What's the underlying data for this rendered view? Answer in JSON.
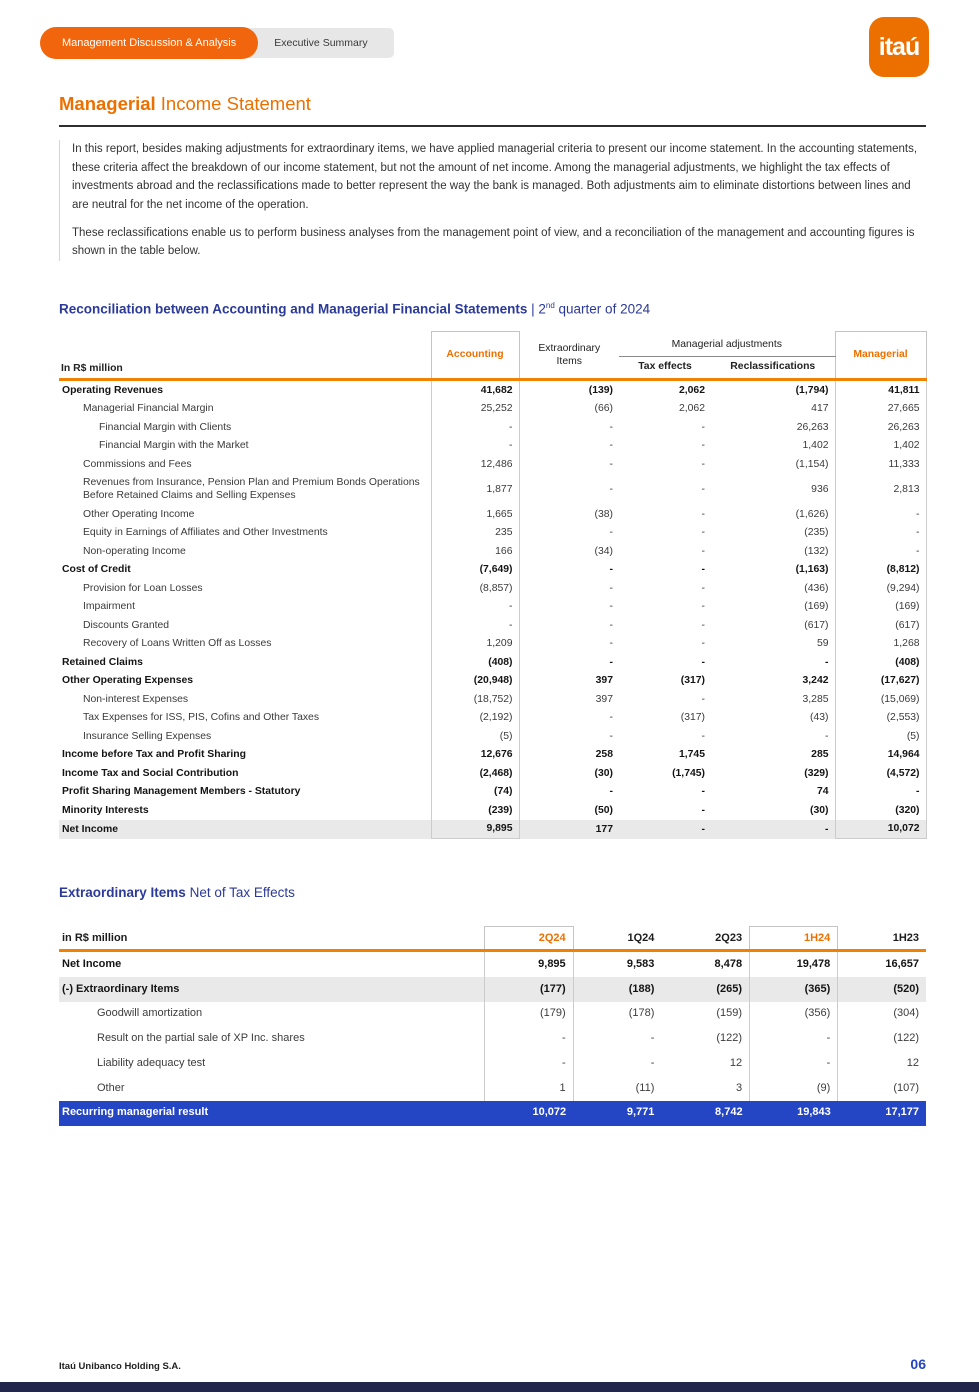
{
  "tabs": {
    "primary": "Management Discussion & Analysis",
    "secondary": "Executive Summary"
  },
  "logo_text": "itaú",
  "title": {
    "highlight": "Managerial",
    "rest": " Income Statement"
  },
  "intro": {
    "p1": "In this report, besides making adjustments for extraordinary items, we have applied managerial criteria to present our income statement. In the accounting statements, these criteria affect the breakdown of our income statement, but not the amount of net income. Among the managerial adjustments, we highlight the tax effects of investments abroad and the reclassifications made to better represent the way the bank is managed. Both adjustments aim to eliminate distortions between lines and are neutral for the net income of the operation.",
    "p2": "These reclassifications enable us to perform business analyses from the management point of view, and a reconciliation of the management and accounting figures is shown in the table below."
  },
  "section1": {
    "bold": "Reconciliation between Accounting and Managerial Financial Statements",
    "sep": " | 2",
    "sup": "nd",
    "rest": " quarter of 2024"
  },
  "recon_table": {
    "unit": "In R$ million",
    "headers": {
      "accounting": "Accounting",
      "extraordinary": "Extraordinary Items",
      "group": "Managerial adjustments",
      "tax": "Tax effects",
      "reclass": "Reclassifications",
      "managerial": "Managerial"
    },
    "rows": [
      {
        "label": "Operating Revenues",
        "indent": 0,
        "bold": true,
        "values": [
          "41,682",
          "(139)",
          "2,062",
          "(1,794)",
          "41,811"
        ]
      },
      {
        "label": "Managerial Financial Margin",
        "indent": 1,
        "values": [
          "25,252",
          "(66)",
          "2,062",
          "417",
          "27,665"
        ]
      },
      {
        "label": "Financial Margin with Clients",
        "indent": 2,
        "values": [
          "-",
          "-",
          "-",
          "26,263",
          "26,263"
        ]
      },
      {
        "label": "Financial Margin with the Market",
        "indent": 2,
        "values": [
          "-",
          "-",
          "-",
          "1,402",
          "1,402"
        ]
      },
      {
        "label": "Commissions and Fees",
        "indent": 1,
        "values": [
          "12,486",
          "-",
          "-",
          "(1,154)",
          "11,333"
        ]
      },
      {
        "label": "Revenues from Insurance, Pension Plan and Premium Bonds Operations Before Retained Claims and Selling Expenses",
        "indent": 1,
        "values": [
          "1,877",
          "-",
          "-",
          "936",
          "2,813"
        ]
      },
      {
        "label": "Other Operating Income",
        "indent": 1,
        "values": [
          "1,665",
          "(38)",
          "-",
          "(1,626)",
          "-"
        ]
      },
      {
        "label": "Equity in Earnings of Affiliates and Other Investments",
        "indent": 1,
        "values": [
          "235",
          "-",
          "-",
          "(235)",
          "-"
        ]
      },
      {
        "label": "Non-operating Income",
        "indent": 1,
        "values": [
          "166",
          "(34)",
          "-",
          "(132)",
          "-"
        ]
      },
      {
        "label": "Cost of Credit",
        "indent": 0,
        "bold": true,
        "values": [
          "(7,649)",
          "-",
          "-",
          "(1,163)",
          "(8,812)"
        ]
      },
      {
        "label": "Provision for Loan Losses",
        "indent": 1,
        "values": [
          "(8,857)",
          "-",
          "-",
          "(436)",
          "(9,294)"
        ]
      },
      {
        "label": "Impairment",
        "indent": 1,
        "values": [
          "-",
          "-",
          "-",
          "(169)",
          "(169)"
        ]
      },
      {
        "label": "Discounts Granted",
        "indent": 1,
        "values": [
          "-",
          "-",
          "-",
          "(617)",
          "(617)"
        ]
      },
      {
        "label": "Recovery of Loans Written Off as Losses",
        "indent": 1,
        "values": [
          "1,209",
          "-",
          "-",
          "59",
          "1,268"
        ]
      },
      {
        "label": "Retained Claims",
        "indent": 0,
        "bold": true,
        "values": [
          "(408)",
          "-",
          "-",
          "-",
          "(408)"
        ]
      },
      {
        "label": "Other Operating Expenses",
        "indent": 0,
        "bold": true,
        "values": [
          "(20,948)",
          "397",
          "(317)",
          "3,242",
          "(17,627)"
        ]
      },
      {
        "label": "Non-interest Expenses",
        "indent": 1,
        "values": [
          "(18,752)",
          "397",
          "-",
          "3,285",
          "(15,069)"
        ]
      },
      {
        "label": "Tax Expenses for ISS, PIS, Cofins and Other Taxes",
        "indent": 1,
        "values": [
          "(2,192)",
          "-",
          "(317)",
          "(43)",
          "(2,553)"
        ]
      },
      {
        "label": "Insurance Selling Expenses",
        "indent": 1,
        "values": [
          "(5)",
          "-",
          "-",
          "-",
          "(5)"
        ]
      },
      {
        "label": "Income before Tax and Profit Sharing",
        "indent": 0,
        "bold": true,
        "values": [
          "12,676",
          "258",
          "1,745",
          "285",
          "14,964"
        ]
      },
      {
        "label": "Income Tax and Social Contribution",
        "indent": 0,
        "bold": true,
        "values": [
          "(2,468)",
          "(30)",
          "(1,745)",
          "(329)",
          "(4,572)"
        ]
      },
      {
        "label": "Profit Sharing Management Members - Statutory",
        "indent": 0,
        "bold": true,
        "values": [
          "(74)",
          "-",
          "-",
          "74",
          "-"
        ]
      },
      {
        "label": "Minority Interests",
        "indent": 0,
        "bold": true,
        "values": [
          "(239)",
          "(50)",
          "-",
          "(30)",
          "(320)"
        ]
      },
      {
        "label": "Net Income",
        "indent": 0,
        "bold": true,
        "shaded": true,
        "values": [
          "9,895",
          "177",
          "-",
          "-",
          "10,072"
        ]
      }
    ]
  },
  "section2": {
    "bold": "Extraordinary Items",
    "rest": " Net of Tax Effects"
  },
  "extra_table": {
    "unit": "in R$ million",
    "columns": [
      "2Q24",
      "1Q24",
      "2Q23",
      "1H24",
      "1H23"
    ],
    "rows": [
      {
        "label": "Net Income",
        "indent": 0,
        "bold": true,
        "values": [
          "9,895",
          "9,583",
          "8,478",
          "19,478",
          "16,657"
        ]
      },
      {
        "label": "(-) Extraordinary Items",
        "indent": 0,
        "bold": true,
        "shaded": true,
        "values": [
          "(177)",
          "(188)",
          "(265)",
          "(365)",
          "(520)"
        ]
      },
      {
        "label": "Goodwill amortization",
        "indent": 1,
        "values": [
          "(179)",
          "(178)",
          "(159)",
          "(356)",
          "(304)"
        ]
      },
      {
        "label": "Result on the partial sale of XP Inc. shares",
        "indent": 1,
        "values": [
          "-",
          "-",
          "(122)",
          "-",
          "(122)"
        ]
      },
      {
        "label": "Liability adequacy test",
        "indent": 1,
        "values": [
          "-",
          "-",
          "12",
          "-",
          "12"
        ]
      },
      {
        "label": "Other",
        "indent": 1,
        "values": [
          "1",
          "(11)",
          "3",
          "(9)",
          "(107)"
        ]
      },
      {
        "label": "Recurring managerial result",
        "indent": 0,
        "highlight": true,
        "values": [
          "10,072",
          "9,771",
          "8,742",
          "19,843",
          "17,177"
        ]
      }
    ]
  },
  "footer": {
    "company": "Itaú Unibanco Holding S.A.",
    "page": "06"
  },
  "colors": {
    "orange": "#EC7000",
    "blue_title": "#2B3A97",
    "blue_bar": "#2445C4"
  }
}
